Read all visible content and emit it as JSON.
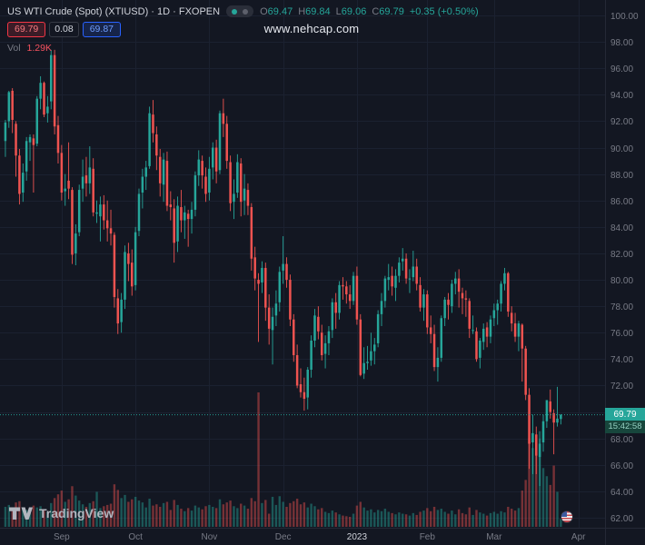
{
  "header": {
    "symbol_title": "US WTI Crude (Spot) (XTIUSD) · 1D · FXOPEN",
    "ohlc": {
      "o_label": "O",
      "o": "69.47",
      "h_label": "H",
      "h": "69.84",
      "l_label": "L",
      "l": "69.06",
      "c_label": "C",
      "c": "69.79",
      "change": "+0.35 (+0.50%)"
    },
    "quote": {
      "sell": "69.79",
      "spread": "0.08",
      "buy": "69.87"
    },
    "volume_label": "Vol",
    "volume_value": "1.29K"
  },
  "watermark": "www.nehcap.com",
  "price_label": {
    "price": "69.79",
    "countdown": "15:42:58"
  },
  "footer": {
    "logo_text": "TradingView"
  },
  "colors": {
    "background": "#131722",
    "up": "#26a69a",
    "down": "#ef5350",
    "sell_red": "#f23645",
    "buy_blue": "#2962ff",
    "axis_text": "#787b86",
    "bright_text": "#d1d4dc"
  },
  "chart_data": {
    "type": "candlestick",
    "title": "US WTI Crude (Spot) (XTIUSD) · 1D · FXOPEN",
    "legend_position": "top-left",
    "grid": "faint",
    "last_price": 69.79,
    "y_axis": {
      "min": 62,
      "max": 100,
      "step": 2,
      "side": "right",
      "format": "0.00"
    },
    "x_axis_labels": [
      "Sep",
      "Oct",
      "Nov",
      "Dec",
      "2023",
      "Feb",
      "Mar",
      "Apr"
    ],
    "candle_fields": [
      "date",
      "open",
      "high",
      "low",
      "close",
      "volume_k"
    ],
    "candles": [
      [
        "2022-08-10",
        90.5,
        92.1,
        89.3,
        91.9,
        3.2
      ],
      [
        "2022-08-11",
        92.0,
        94.3,
        91.5,
        94.2,
        3.5
      ],
      [
        "2022-08-12",
        94.3,
        94.5,
        91.1,
        92.1,
        2.8
      ],
      [
        "2022-08-15",
        91.8,
        92.0,
        87.8,
        89.4,
        3.9
      ],
      [
        "2022-08-16",
        89.4,
        89.9,
        85.7,
        86.5,
        4.1
      ],
      [
        "2022-08-17",
        86.6,
        88.8,
        85.9,
        88.1,
        3.0
      ],
      [
        "2022-08-18",
        88.2,
        90.8,
        87.5,
        90.5,
        2.7
      ],
      [
        "2022-08-19",
        90.4,
        91.0,
        89.0,
        90.8,
        2.2
      ],
      [
        "2022-08-22",
        90.7,
        91.0,
        86.6,
        90.2,
        3.4
      ],
      [
        "2022-08-23",
        90.3,
        93.9,
        90.1,
        93.7,
        3.1
      ],
      [
        "2022-08-24",
        93.7,
        95.4,
        92.9,
        94.9,
        3.3
      ],
      [
        "2022-08-25",
        94.9,
        95.0,
        92.3,
        92.5,
        2.6
      ],
      [
        "2022-08-26",
        92.6,
        93.9,
        91.9,
        93.1,
        2.4
      ],
      [
        "2022-08-29",
        93.5,
        97.4,
        92.9,
        97.0,
        3.8
      ],
      [
        "2022-08-30",
        97.0,
        97.4,
        91.0,
        91.6,
        4.6
      ],
      [
        "2022-08-31",
        91.7,
        92.4,
        88.8,
        89.6,
        5.2
      ],
      [
        "2022-09-01",
        89.6,
        90.2,
        86.0,
        86.6,
        5.8
      ],
      [
        "2022-09-02",
        86.7,
        88.0,
        85.6,
        86.9,
        4.0
      ],
      [
        "2022-09-06",
        87.5,
        90.4,
        86.1,
        86.9,
        4.4
      ],
      [
        "2022-09-07",
        86.8,
        87.0,
        81.2,
        81.9,
        6.5
      ],
      [
        "2022-09-08",
        82.0,
        84.2,
        81.1,
        83.5,
        5.0
      ],
      [
        "2022-09-09",
        83.6,
        87.2,
        83.3,
        86.8,
        4.2
      ],
      [
        "2022-09-12",
        86.9,
        89.1,
        85.9,
        87.8,
        3.6
      ],
      [
        "2022-09-13",
        87.9,
        89.3,
        86.3,
        87.3,
        3.2
      ],
      [
        "2022-09-14",
        87.3,
        90.1,
        86.5,
        88.5,
        3.8
      ],
      [
        "2022-09-15",
        88.4,
        89.2,
        84.8,
        85.1,
        4.1
      ],
      [
        "2022-09-16",
        85.0,
        86.0,
        84.3,
        85.1,
        5.6
      ],
      [
        "2022-09-19",
        84.8,
        86.3,
        82.9,
        85.7,
        3.0
      ],
      [
        "2022-09-20",
        85.7,
        86.4,
        83.8,
        84.5,
        3.3
      ],
      [
        "2022-09-21",
        84.5,
        86.0,
        82.9,
        83.9,
        3.5
      ],
      [
        "2022-09-22",
        83.9,
        85.3,
        82.6,
        83.5,
        3.7
      ],
      [
        "2022-09-23",
        83.4,
        83.6,
        77.9,
        78.7,
        6.8
      ],
      [
        "2022-09-26",
        78.6,
        79.3,
        75.9,
        76.7,
        5.9
      ],
      [
        "2022-09-27",
        76.8,
        79.0,
        76.0,
        78.5,
        4.6
      ],
      [
        "2022-09-28",
        78.5,
        82.6,
        77.8,
        82.1,
        5.1
      ],
      [
        "2022-09-29",
        82.0,
        82.8,
        79.9,
        81.2,
        4.0
      ],
      [
        "2022-09-30",
        81.3,
        82.3,
        78.8,
        79.5,
        4.4
      ],
      [
        "2022-10-03",
        79.6,
        84.0,
        79.2,
        83.6,
        4.8
      ],
      [
        "2022-10-04",
        83.7,
        86.9,
        83.3,
        86.5,
        4.2
      ],
      [
        "2022-10-05",
        86.6,
        88.4,
        85.4,
        87.8,
        3.9
      ],
      [
        "2022-10-06",
        87.8,
        89.0,
        86.8,
        88.5,
        3.1
      ],
      [
        "2022-10-07",
        88.6,
        93.1,
        88.4,
        92.6,
        4.5
      ],
      [
        "2022-10-10",
        92.5,
        93.6,
        90.4,
        91.1,
        3.4
      ],
      [
        "2022-10-11",
        91.0,
        91.6,
        88.3,
        89.4,
        3.6
      ],
      [
        "2022-10-12",
        89.3,
        89.9,
        86.3,
        87.3,
        3.2
      ],
      [
        "2022-10-13",
        87.2,
        89.6,
        85.9,
        89.1,
        3.8
      ],
      [
        "2022-10-14",
        89.0,
        89.7,
        85.2,
        85.6,
        4.0
      ],
      [
        "2022-10-17",
        85.7,
        86.7,
        84.5,
        85.5,
        2.7
      ],
      [
        "2022-10-18",
        85.4,
        86.1,
        81.3,
        82.8,
        4.3
      ],
      [
        "2022-10-19",
        82.9,
        86.3,
        82.1,
        85.6,
        3.5
      ],
      [
        "2022-10-20",
        85.5,
        86.8,
        83.6,
        84.5,
        2.9
      ],
      [
        "2022-10-21",
        84.5,
        85.6,
        83.1,
        85.1,
        2.5
      ],
      [
        "2022-10-24",
        85.0,
        85.3,
        82.5,
        84.6,
        3.0
      ],
      [
        "2022-10-25",
        84.6,
        85.9,
        83.5,
        85.3,
        2.6
      ],
      [
        "2022-10-26",
        85.3,
        88.2,
        84.8,
        87.9,
        3.4
      ],
      [
        "2022-10-27",
        87.9,
        89.8,
        87.1,
        89.1,
        3.1
      ],
      [
        "2022-10-28",
        89.0,
        89.4,
        86.9,
        87.9,
        2.8
      ],
      [
        "2022-10-31",
        87.8,
        88.5,
        85.9,
        86.5,
        3.3
      ],
      [
        "2022-11-01",
        86.6,
        89.3,
        86.0,
        88.4,
        3.5
      ],
      [
        "2022-11-02",
        88.5,
        90.4,
        87.6,
        90.0,
        3.2
      ],
      [
        "2022-11-03",
        90.0,
        90.6,
        87.3,
        88.2,
        3.0
      ],
      [
        "2022-11-04",
        88.3,
        92.8,
        88.0,
        92.6,
        4.4
      ],
      [
        "2022-11-07",
        92.6,
        93.7,
        90.8,
        91.8,
        3.6
      ],
      [
        "2022-11-08",
        91.8,
        92.4,
        88.4,
        89.0,
        3.9
      ],
      [
        "2022-11-09",
        88.9,
        89.4,
        85.2,
        85.8,
        4.2
      ],
      [
        "2022-11-10",
        85.9,
        87.6,
        84.6,
        86.5,
        3.3
      ],
      [
        "2022-11-11",
        86.6,
        89.5,
        86.2,
        88.9,
        3.0
      ],
      [
        "2022-11-14",
        88.8,
        89.2,
        84.8,
        85.9,
        3.7
      ],
      [
        "2022-11-15",
        86.0,
        88.0,
        84.9,
        86.9,
        3.4
      ],
      [
        "2022-11-16",
        86.8,
        87.3,
        84.9,
        85.6,
        2.9
      ],
      [
        "2022-11-17",
        85.5,
        85.8,
        80.7,
        81.6,
        4.6
      ],
      [
        "2022-11-18",
        81.7,
        82.5,
        79.2,
        80.1,
        4.1
      ],
      [
        "2022-11-21",
        80.0,
        80.5,
        75.3,
        79.7,
        21.5
      ],
      [
        "2022-11-22",
        79.8,
        81.4,
        79.0,
        80.9,
        3.8
      ],
      [
        "2022-11-23",
        80.9,
        81.3,
        76.9,
        77.9,
        4.3
      ],
      [
        "2022-11-25",
        77.9,
        78.9,
        75.1,
        76.3,
        2.1
      ],
      [
        "2022-11-28",
        76.2,
        77.9,
        73.6,
        77.2,
        4.8
      ],
      [
        "2022-11-29",
        77.3,
        79.2,
        76.5,
        78.2,
        3.5
      ],
      [
        "2022-11-30",
        78.3,
        81.0,
        77.6,
        80.6,
        4.9
      ],
      [
        "2022-12-01",
        80.7,
        83.3,
        79.7,
        81.2,
        4.0
      ],
      [
        "2022-12-02",
        81.2,
        81.7,
        79.4,
        80.0,
        3.2
      ],
      [
        "2022-12-05",
        80.0,
        80.4,
        76.5,
        77.0,
        3.8
      ],
      [
        "2022-12-06",
        77.0,
        77.4,
        73.8,
        74.3,
        4.1
      ],
      [
        "2022-12-07",
        74.3,
        75.1,
        71.8,
        72.0,
        4.5
      ],
      [
        "2022-12-08",
        72.1,
        73.3,
        71.1,
        71.5,
        3.6
      ],
      [
        "2022-12-09",
        71.5,
        72.6,
        70.1,
        71.0,
        3.9
      ],
      [
        "2022-12-12",
        71.1,
        73.4,
        70.2,
        73.2,
        3.1
      ],
      [
        "2022-12-13",
        73.2,
        75.8,
        72.6,
        75.4,
        3.7
      ],
      [
        "2022-12-14",
        75.4,
        77.8,
        74.9,
        77.3,
        3.3
      ],
      [
        "2022-12-15",
        77.2,
        78.0,
        75.5,
        76.1,
        2.8
      ],
      [
        "2022-12-16",
        76.0,
        76.6,
        73.9,
        74.3,
        3.0
      ],
      [
        "2022-12-19",
        74.4,
        75.8,
        73.3,
        75.2,
        2.4
      ],
      [
        "2022-12-20",
        75.2,
        76.5,
        74.3,
        76.1,
        2.2
      ],
      [
        "2022-12-21",
        76.2,
        78.6,
        75.6,
        78.3,
        2.6
      ],
      [
        "2022-12-22",
        78.3,
        79.0,
        76.3,
        77.5,
        2.3
      ],
      [
        "2022-12-23",
        77.5,
        79.9,
        77.0,
        79.6,
        2.0
      ],
      [
        "2022-12-27",
        79.6,
        80.2,
        78.5,
        79.5,
        1.8
      ],
      [
        "2022-12-28",
        79.5,
        79.9,
        78.2,
        78.9,
        1.7
      ],
      [
        "2022-12-29",
        78.9,
        79.6,
        77.8,
        78.4,
        1.6
      ],
      [
        "2022-12-30",
        78.4,
        80.6,
        78.1,
        80.3,
        2.1
      ],
      [
        "2023-01-03",
        80.3,
        81.0,
        76.6,
        77.0,
        3.4
      ],
      [
        "2023-01-04",
        77.0,
        77.4,
        72.7,
        72.8,
        4.0
      ],
      [
        "2023-01-05",
        72.9,
        74.9,
        72.5,
        73.7,
        3.1
      ],
      [
        "2023-01-06",
        73.7,
        75.0,
        73.2,
        73.8,
        2.6
      ],
      [
        "2023-01-09",
        73.9,
        76.0,
        73.5,
        74.6,
        2.8
      ],
      [
        "2023-01-10",
        74.6,
        75.6,
        73.6,
        75.1,
        2.3
      ],
      [
        "2023-01-11",
        75.2,
        77.7,
        74.9,
        77.4,
        2.7
      ],
      [
        "2023-01-12",
        77.4,
        79.0,
        76.5,
        78.4,
        2.5
      ],
      [
        "2023-01-13",
        78.4,
        80.3,
        77.9,
        80.1,
        2.9
      ],
      [
        "2023-01-17",
        80.0,
        81.2,
        79.2,
        80.2,
        2.4
      ],
      [
        "2023-01-18",
        80.3,
        81.0,
        78.8,
        79.5,
        2.2
      ],
      [
        "2023-01-19",
        79.4,
        80.8,
        78.4,
        80.3,
        2.0
      ],
      [
        "2023-01-20",
        80.3,
        81.7,
        79.8,
        81.3,
        2.3
      ],
      [
        "2023-01-23",
        81.4,
        82.4,
        80.7,
        81.6,
        2.1
      ],
      [
        "2023-01-24",
        81.6,
        82.0,
        79.7,
        80.1,
        2.0
      ],
      [
        "2023-01-25",
        80.1,
        80.8,
        79.0,
        80.1,
        1.8
      ],
      [
        "2023-01-26",
        80.2,
        82.2,
        79.9,
        81.0,
        2.2
      ],
      [
        "2023-01-27",
        81.0,
        81.6,
        79.2,
        79.7,
        1.9
      ],
      [
        "2023-01-30",
        79.6,
        80.2,
        77.6,
        77.9,
        2.4
      ],
      [
        "2023-01-31",
        77.9,
        79.3,
        76.9,
        78.9,
        2.6
      ],
      [
        "2023-02-01",
        78.9,
        79.2,
        75.9,
        76.4,
        3.0
      ],
      [
        "2023-02-02",
        76.4,
        77.3,
        75.2,
        75.9,
        2.5
      ],
      [
        "2023-02-03",
        75.9,
        76.6,
        73.1,
        73.4,
        3.2
      ],
      [
        "2023-02-06",
        73.4,
        74.9,
        72.3,
        74.1,
        2.7
      ],
      [
        "2023-02-07",
        74.1,
        77.3,
        73.8,
        77.1,
        2.9
      ],
      [
        "2023-02-08",
        77.1,
        78.7,
        76.5,
        78.5,
        2.4
      ],
      [
        "2023-02-09",
        78.5,
        79.0,
        77.0,
        78.1,
        2.1
      ],
      [
        "2023-02-10",
        78.0,
        80.0,
        77.5,
        79.7,
        2.6
      ],
      [
        "2023-02-13",
        79.7,
        80.6,
        78.9,
        80.1,
        2.0
      ],
      [
        "2023-02-14",
        80.1,
        80.8,
        77.9,
        79.1,
        2.8
      ],
      [
        "2023-02-15",
        79.0,
        79.4,
        77.4,
        78.6,
        2.2
      ],
      [
        "2023-02-16",
        78.6,
        79.2,
        77.2,
        78.5,
        2.0
      ],
      [
        "2023-02-17",
        78.4,
        78.6,
        75.6,
        76.3,
        3.1
      ],
      [
        "2023-02-21",
        76.2,
        77.3,
        75.9,
        76.2,
        1.9
      ],
      [
        "2023-02-22",
        76.1,
        76.4,
        73.8,
        74.0,
        2.7
      ],
      [
        "2023-02-23",
        74.1,
        75.6,
        73.3,
        75.4,
        2.3
      ],
      [
        "2023-02-24",
        75.3,
        76.7,
        74.7,
        76.3,
        2.1
      ],
      [
        "2023-02-27",
        76.4,
        76.8,
        74.9,
        75.7,
        1.8
      ],
      [
        "2023-02-28",
        75.7,
        77.3,
        75.2,
        77.0,
        2.2
      ],
      [
        "2023-03-01",
        77.1,
        78.2,
        76.5,
        77.7,
        2.4
      ],
      [
        "2023-03-02",
        77.7,
        78.5,
        76.6,
        78.2,
        2.1
      ],
      [
        "2023-03-03",
        78.2,
        79.9,
        77.6,
        79.7,
        2.5
      ],
      [
        "2023-03-06",
        79.7,
        80.9,
        79.2,
        80.5,
        2.3
      ],
      [
        "2023-03-07",
        80.5,
        80.6,
        77.2,
        77.6,
        3.2
      ],
      [
        "2023-03-08",
        77.5,
        78.0,
        76.1,
        76.7,
        2.9
      ],
      [
        "2023-03-09",
        76.7,
        77.5,
        75.3,
        75.7,
        2.6
      ],
      [
        "2023-03-10",
        75.7,
        76.9,
        74.6,
        76.7,
        3.0
      ],
      [
        "2023-03-13",
        76.6,
        76.7,
        72.3,
        74.8,
        5.8
      ],
      [
        "2023-03-14",
        74.8,
        75.0,
        70.9,
        71.3,
        7.5
      ],
      [
        "2023-03-15",
        71.3,
        71.8,
        65.7,
        67.6,
        14.2
      ],
      [
        "2023-03-16",
        67.7,
        69.8,
        65.3,
        68.4,
        12.6
      ],
      [
        "2023-03-17",
        68.3,
        68.9,
        65.3,
        66.7,
        11.8
      ],
      [
        "2023-03-20",
        66.6,
        68.0,
        64.4,
        67.6,
        15.3
      ],
      [
        "2023-03-21",
        67.7,
        69.8,
        67.0,
        69.3,
        9.4
      ],
      [
        "2023-03-22",
        69.3,
        70.9,
        68.8,
        70.9,
        8.1
      ],
      [
        "2023-03-23",
        70.8,
        71.7,
        69.5,
        70.0,
        6.7
      ],
      [
        "2023-03-24",
        69.9,
        70.2,
        66.8,
        69.2,
        9.8
      ],
      [
        "2023-03-27",
        69.2,
        71.9,
        68.9,
        69.5,
        5.6
      ],
      [
        "2023-03-28",
        69.47,
        69.84,
        69.06,
        69.79,
        1.29
      ]
    ]
  }
}
